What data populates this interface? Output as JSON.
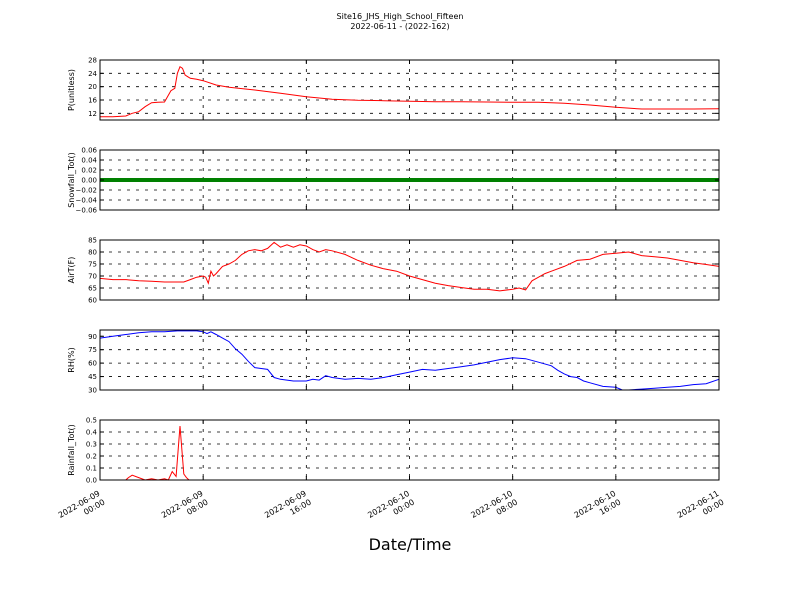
{
  "figure": {
    "title": "Site16_JHS_High_School_Fifteen",
    "subtitle": "2022-06-11 - (2022-162)",
    "xlabel": "Date/Time",
    "x_ticks": [
      {
        "line1": "2022-06-09",
        "line2": "00:00",
        "h": 0
      },
      {
        "line1": "2022-06-09",
        "line2": "08:00",
        "h": 8
      },
      {
        "line1": "2022-06-09",
        "line2": "16:00",
        "h": 16
      },
      {
        "line1": "2022-06-10",
        "line2": "00:00",
        "h": 24
      },
      {
        "line1": "2022-06-10",
        "line2": "08:00",
        "h": 32
      },
      {
        "line1": "2022-06-10",
        "line2": "16:00",
        "h": 40
      },
      {
        "line1": "2022-06-11",
        "line2": "00:00",
        "h": 48
      }
    ]
  },
  "chart_data": [
    {
      "type": "line",
      "ylabel": "P(unitless)",
      "color": "#ff0000",
      "ylim": [
        10,
        28
      ],
      "yticks": [
        12,
        16,
        20,
        24,
        28
      ],
      "ytick_labels": [
        "12",
        "16",
        "20",
        "24",
        "28"
      ],
      "x_unit": "hours since 2022-06-09 00:00",
      "x": [
        0,
        1,
        2,
        2.5,
        3,
        3.5,
        4,
        4.5,
        5,
        5.5,
        5.8,
        6,
        6.2,
        6.4,
        6.6,
        6.8,
        7,
        7.5,
        8,
        9,
        10,
        12,
        14,
        16,
        18,
        20,
        22,
        24,
        26,
        28,
        30,
        32,
        34,
        36,
        38,
        40,
        42,
        44,
        46,
        48
      ],
      "y": [
        11,
        11,
        11.2,
        12,
        12.5,
        14,
        15.2,
        15.3,
        15.4,
        18.8,
        19.5,
        24,
        26,
        25.5,
        23.5,
        23,
        22.5,
        22.2,
        21.8,
        20.5,
        19.8,
        19,
        18,
        17,
        16.2,
        15.9,
        15.8,
        15.6,
        15.5,
        15.5,
        15.4,
        15.3,
        15.3,
        15,
        14.5,
        13.8,
        13.3,
        13.3,
        13.3,
        13.4
      ]
    },
    {
      "type": "line",
      "ylabel": "Snowfall_Tot()",
      "color": "#008000",
      "ylim": [
        -0.06,
        0.06
      ],
      "yticks": [
        -0.06,
        -0.04,
        -0.02,
        0.0,
        0.02,
        0.04,
        0.06
      ],
      "ytick_labels": [
        "−0.06",
        "−0.04",
        "−0.02",
        "0.00",
        "0.02",
        "0.04",
        "0.06"
      ],
      "x_unit": "hours since 2022-06-09 00:00",
      "x": [
        0,
        48
      ],
      "y": [
        0,
        0
      ]
    },
    {
      "type": "line",
      "ylabel": "AirT(F)",
      "color": "#ff0000",
      "ylim": [
        60,
        85
      ],
      "yticks": [
        60,
        65,
        70,
        75,
        80,
        85
      ],
      "ytick_labels": [
        "60",
        "65",
        "70",
        "75",
        "80",
        "85"
      ],
      "x_unit": "hours since 2022-06-09 00:00",
      "x": [
        0,
        1,
        2,
        3,
        4,
        5,
        6,
        6.5,
        7,
        7.5,
        8,
        8.2,
        8.4,
        8.6,
        8.8,
        9,
        9.5,
        10,
        10.5,
        11,
        11.5,
        12,
        12.5,
        13,
        13.5,
        14,
        14.5,
        15,
        15.5,
        16,
        16.5,
        17,
        17.5,
        18,
        19,
        20,
        21,
        22,
        23,
        24,
        25,
        26,
        27,
        28,
        29,
        30,
        31,
        32,
        32.5,
        33,
        33.5,
        34,
        34.5,
        35,
        36,
        37,
        38,
        39,
        40,
        41,
        42,
        43,
        44,
        45,
        46,
        47,
        48
      ],
      "y": [
        69,
        68.5,
        68.5,
        68,
        67.8,
        67.5,
        67.5,
        67.5,
        68.5,
        69.5,
        70,
        69.5,
        67,
        72,
        70,
        71,
        74,
        75,
        76.5,
        79,
        80.5,
        81,
        80.5,
        81.5,
        84,
        82,
        83,
        82,
        83,
        82.5,
        81,
        80,
        81,
        80.5,
        79,
        76.5,
        74.5,
        73,
        72,
        70,
        68.5,
        67,
        66,
        65.2,
        64.5,
        64.5,
        63.8,
        64.5,
        65,
        64.2,
        68,
        69.5,
        71,
        72,
        74,
        76.5,
        77,
        79,
        79.5,
        80,
        78.5,
        78,
        77.5,
        76.5,
        75.5,
        74.8,
        74
      ]
    },
    {
      "type": "line",
      "ylabel": "RH(%)",
      "color": "#0000ff",
      "ylim": [
        30,
        97
      ],
      "yticks": [
        30,
        45,
        60,
        75,
        90
      ],
      "ytick_labels": [
        "30",
        "45",
        "60",
        "75",
        "90"
      ],
      "x_unit": "hours since 2022-06-09 00:00",
      "x": [
        0,
        1,
        2,
        3,
        4,
        5,
        6,
        7,
        7.5,
        8,
        8.3,
        8.6,
        9,
        9.5,
        10,
        10.5,
        11,
        11.5,
        12,
        12.5,
        13,
        13.5,
        14,
        15,
        16,
        16.5,
        17,
        17.5,
        18,
        19,
        20,
        21,
        22,
        23,
        24,
        25,
        26,
        27,
        28,
        29,
        30,
        31,
        32,
        33,
        34,
        35,
        35.5,
        36,
        36.5,
        37,
        37.5,
        38,
        39,
        40,
        40.5,
        41,
        42,
        43,
        44,
        45,
        46,
        47,
        48
      ],
      "y": [
        88,
        90,
        92,
        94,
        95,
        95,
        96,
        96,
        96,
        95,
        93,
        95,
        92,
        88,
        84,
        76,
        70,
        62,
        55,
        54,
        53,
        44,
        42,
        40,
        40,
        42,
        41,
        46,
        44,
        42,
        43,
        42,
        44,
        47,
        50,
        53,
        52,
        54,
        56,
        58,
        61,
        64,
        66,
        65,
        61,
        57,
        52,
        48,
        45,
        44,
        40,
        38,
        34,
        33,
        30,
        30,
        31,
        32,
        33,
        34,
        36,
        37,
        42
      ]
    },
    {
      "type": "line",
      "ylabel": "Rainfall_Tot()",
      "color": "#ff0000",
      "ylim": [
        0,
        0.5
      ],
      "yticks": [
        0.0,
        0.1,
        0.2,
        0.3,
        0.4,
        0.5
      ],
      "ytick_labels": [
        "0.0",
        "0.1",
        "0.2",
        "0.3",
        "0.4",
        "0.5"
      ],
      "x_unit": "hours since 2022-06-09 00:00",
      "x": [
        0,
        1,
        2,
        2.2,
        2.5,
        3,
        3.5,
        4,
        4.5,
        5,
        5.3,
        5.6,
        5.9,
        6.2,
        6.5,
        6.7,
        6.9,
        7.2,
        8,
        12,
        16,
        20,
        24,
        28,
        32,
        36,
        40,
        44,
        48
      ],
      "y": [
        0,
        0,
        0,
        0.02,
        0.04,
        0.02,
        0.0,
        0.01,
        0.0,
        0.01,
        0.0,
        0.07,
        0.03,
        0.45,
        0.05,
        0.02,
        0.0,
        0.0,
        0,
        0,
        0,
        0,
        0,
        0,
        0,
        0,
        0,
        0,
        0
      ]
    }
  ]
}
